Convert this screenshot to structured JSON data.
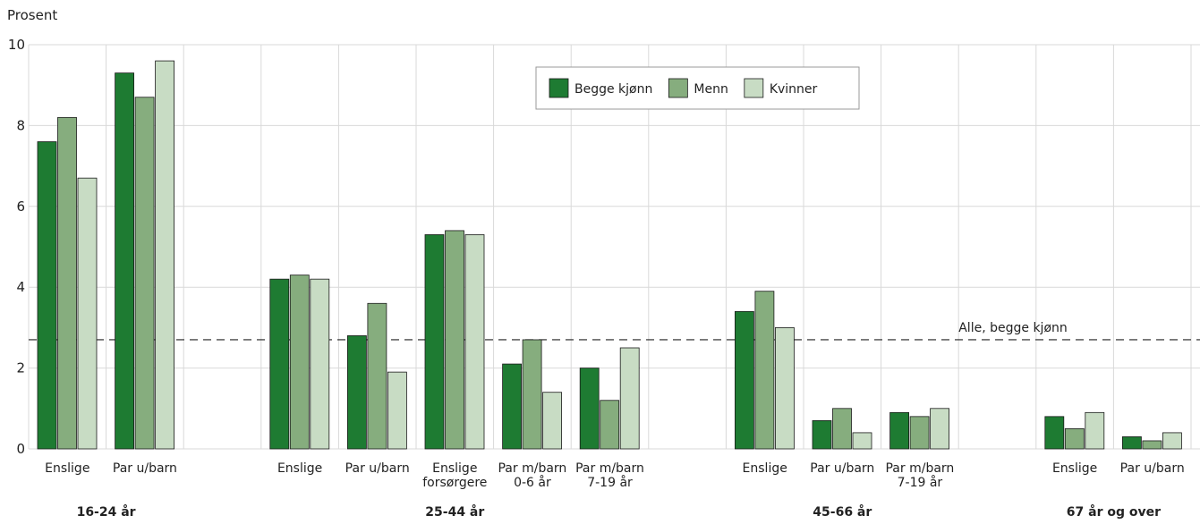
{
  "chart_data": {
    "type": "bar",
    "ylabel": "Prosent",
    "ylim": [
      0,
      10
    ],
    "yticks": [
      0,
      2,
      4,
      6,
      8,
      10
    ],
    "grid": true,
    "legend_position": "top-center",
    "series": [
      {
        "name": "Begge kjønn",
        "color": "#1e7b32"
      },
      {
        "name": "Menn",
        "color": "#86ad7e"
      },
      {
        "name": "Kvinner",
        "color": "#c8dcc4"
      }
    ],
    "reference_line": {
      "label": "Alle, begge kjønn",
      "value": 2.7
    },
    "groups": [
      {
        "label": "16-24 år",
        "categories": [
          {
            "label": "Enslige",
            "values": [
              7.6,
              8.2,
              6.7
            ]
          },
          {
            "label": "Par u/barn",
            "values": [
              9.3,
              8.7,
              9.6
            ]
          }
        ]
      },
      {
        "label": "25-44 år",
        "categories": [
          {
            "label": "Enslige",
            "values": [
              4.2,
              4.3,
              4.2
            ]
          },
          {
            "label": "Par u/barn",
            "values": [
              2.8,
              3.6,
              1.9
            ]
          },
          {
            "label": "Enslige\nforsørgere",
            "values": [
              5.3,
              5.4,
              5.3
            ]
          },
          {
            "label": "Par m/barn\n0-6 år",
            "values": [
              2.1,
              2.7,
              1.4
            ]
          },
          {
            "label": "Par m/barn\n7-19 år",
            "values": [
              2.0,
              1.2,
              2.5
            ]
          }
        ]
      },
      {
        "label": "45-66 år",
        "categories": [
          {
            "label": "Enslige",
            "values": [
              3.4,
              3.9,
              3.0
            ]
          },
          {
            "label": "Par u/barn",
            "values": [
              0.7,
              1.0,
              0.4
            ]
          },
          {
            "label": "Par m/barn\n7-19 år",
            "values": [
              0.9,
              0.8,
              1.0
            ]
          }
        ]
      },
      {
        "label": "67 år og over",
        "categories": [
          {
            "label": "Enslige",
            "values": [
              0.8,
              0.5,
              0.9
            ]
          },
          {
            "label": "Par u/barn",
            "values": [
              0.3,
              0.2,
              0.4
            ]
          }
        ]
      }
    ]
  }
}
